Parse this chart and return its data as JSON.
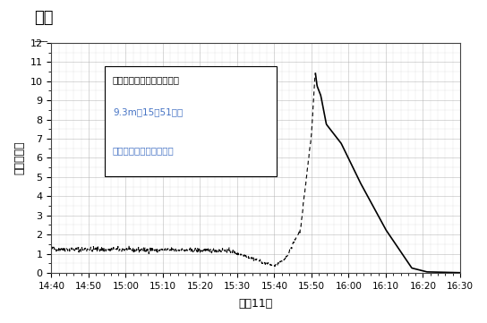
{
  "title": "相馬",
  "xlabel": "３月11日",
  "ylabel": "潮位（ｍ）",
  "xlim": [
    0,
    110
  ],
  "ylim": [
    0,
    12
  ],
  "yticks": [
    0,
    1,
    2,
    3,
    4,
    5,
    6,
    7,
    8,
    9,
    10,
    11,
    12
  ],
  "xtick_labels": [
    "14:40",
    "14:50",
    "15:00",
    "15:10",
    "15:20",
    "15:30",
    "15:40",
    "15:50",
    "16:00",
    "16:10",
    "16:20",
    "16:30"
  ],
  "xtick_positions": [
    0,
    10,
    20,
    30,
    40,
    50,
    60,
    70,
    80,
    90,
    100,
    110
  ],
  "annotation_line1": "観測された津波の最大高さ",
  "annotation_line2": "9.3m（15時51分）",
  "annotation_line3": "実線が回収されたデータ",
  "annotation_color_black": "#000000",
  "annotation_color_blue": "#4472C4",
  "background_color": "#ffffff",
  "grid_color": "#aaaaaa",
  "line_color": "#000000",
  "solid_start_x": 71,
  "peak_x": 71,
  "peak_y": 10.5
}
